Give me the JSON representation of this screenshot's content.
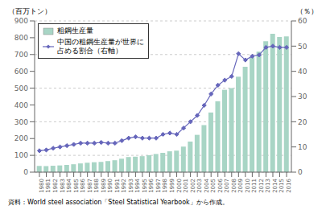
{
  "chart_data": {
    "type": "bar",
    "x": [
      1980,
      1981,
      1982,
      1983,
      1984,
      1985,
      1986,
      1987,
      1988,
      1989,
      1990,
      1991,
      1992,
      1993,
      1994,
      1995,
      1996,
      1997,
      1998,
      1999,
      2000,
      2001,
      2002,
      2003,
      2004,
      2005,
      2006,
      2007,
      2008,
      2009,
      2010,
      2011,
      2012,
      2013,
      2014,
      2015,
      2016
    ],
    "xlim": [
      1979.3,
      2016.7
    ],
    "xticks": [
      1980,
      1981,
      1982,
      1983,
      1984,
      1985,
      1986,
      1987,
      1988,
      1989,
      1990,
      1991,
      1992,
      1993,
      1994,
      1995,
      1996,
      1997,
      1998,
      1999,
      2000,
      2001,
      2002,
      2003,
      2004,
      2005,
      2006,
      2007,
      2008,
      2009,
      2010,
      2011,
      2012,
      2013,
      2014,
      2015,
      2016
    ],
    "series": [
      {
        "name": "粗鋼生産量",
        "type": "bar",
        "color": "#a8d5c5",
        "values": [
          37,
          36,
          38,
          40,
          43,
          47,
          52,
          56,
          59,
          61,
          66,
          71,
          80,
          90,
          92,
          95,
          101,
          108,
          115,
          124,
          128,
          152,
          182,
          222,
          280,
          355,
          422,
          490,
          500,
          568,
          627,
          683,
          717,
          779,
          823,
          804,
          808
        ]
      },
      {
        "name": "中国の粗鋼生産量が世界に\n占める割合（右軸）",
        "type": "line",
        "axis": "y2",
        "color": "#6666bb",
        "marker": "diamond",
        "values": [
          8.5,
          8.8,
          9.5,
          10.0,
          10.5,
          11.0,
          11.5,
          11.5,
          11.5,
          11.8,
          11.5,
          11.5,
          12.5,
          13.5,
          14.0,
          13.5,
          13.5,
          13.5,
          15.0,
          15.5,
          15.0,
          17.5,
          20.0,
          22.5,
          26.5,
          31.0,
          34.5,
          36.5,
          38.0,
          47.0,
          44.5,
          46.0,
          46.5,
          49.5,
          50.0,
          49.5,
          49.5
        ]
      }
    ],
    "ylim": [
      0,
      900
    ],
    "yticks": [
      0,
      100,
      200,
      300,
      400,
      500,
      600,
      700,
      800,
      900
    ],
    "y2lim": [
      0,
      60
    ],
    "y2ticks": [
      0,
      10,
      20,
      30,
      40,
      50,
      60
    ],
    "ylabel": "（百万トン）",
    "y2label": "（％）",
    "source": "資料：World steel association「Steel Statistical Yearbook」から作成。",
    "grid": true,
    "legend": "upper left"
  }
}
